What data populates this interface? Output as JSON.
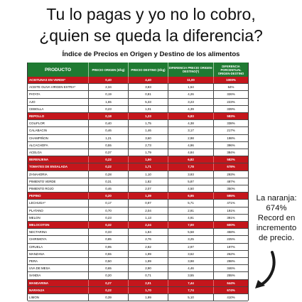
{
  "title_line1": "Tu lo pagas y yo no lo cobro,",
  "title_line2": "¿quien se queda la diferencia?",
  "subtitle": "Índice de Precios en Origen y Destino de los alimentos",
  "headers": [
    "PRODUCTO",
    "PRECIO ORIGEN (€/kg)",
    "PRECIO DESTINO (€/kg)",
    "DIFERENCIA PRECIO ORIGEN-DESTINO(*)",
    "DIFERENCIA PORCENTUAL ORIGEN-DESTINO"
  ],
  "rows": [
    {
      "name": "ACEITUNAS EN VERDE*",
      "origen": "0,40",
      "destino": "4,40",
      "diferencia": "11,00",
      "pct": "1000%",
      "style": "red"
    },
    {
      "name": "ACEITE OLIVA VIRGEN EXTRA*",
      "origen": "2,34",
      "destino": "3,83",
      "diferencia": "1,64",
      "pct": "64%",
      "style": "plain"
    },
    {
      "name": "PATATA",
      "origen": "0,19",
      "destino": "0,81",
      "diferencia": "4,26",
      "pct": "326%",
      "style": "plain"
    },
    {
      "name": "AJO",
      "origen": "1,65",
      "destino": "5,33",
      "diferencia": "3,23",
      "pct": "223%",
      "style": "plain"
    },
    {
      "name": "CEBOLLA",
      "origen": "0,23",
      "destino": "1,01",
      "diferencia": "4,39",
      "pct": "339%",
      "style": "plain"
    },
    {
      "name": "REPOLLO",
      "origen": "0,18",
      "destino": "1,23",
      "diferencia": "6,83",
      "pct": "583%",
      "style": "red"
    },
    {
      "name": "COLIFLOR",
      "origen": "0,40",
      "destino": "1,75",
      "diferencia": "4,38",
      "pct": "338%",
      "style": "plain"
    },
    {
      "name": "CALABACIN",
      "origen": "0,46",
      "destino": "1,46",
      "diferencia": "3,17",
      "pct": "217%",
      "style": "plain"
    },
    {
      "name": "CHAMPIÑON",
      "origen": "1,21",
      "destino": "3,60",
      "diferencia": "2,98",
      "pct": "198%",
      "style": "plain"
    },
    {
      "name": "ALCACHOFA",
      "origen": "0,55",
      "destino": "2,73",
      "diferencia": "4,96",
      "pct": "396%",
      "style": "plain"
    },
    {
      "name": "ACELGA",
      "origen": "0,37",
      "destino": "1,79",
      "diferencia": "4,84",
      "pct": "384%",
      "style": "plain"
    },
    {
      "name": "BERENJENA",
      "origen": "0,22",
      "destino": "1,50",
      "diferencia": "6,82",
      "pct": "582%",
      "style": "red"
    },
    {
      "name": "TOMATES DE ENSALADA",
      "origen": "0,22",
      "destino": "1,71",
      "diferencia": "7,78",
      "pct": "678%",
      "style": "red"
    },
    {
      "name": "ZANAHORIA",
      "origen": "0,28",
      "destino": "1,10",
      "diferencia": "3,93",
      "pct": "293%",
      "style": "plain"
    },
    {
      "name": "PIMIENTO VERDE",
      "origen": "0,31",
      "destino": "1,82",
      "diferencia": "5,87",
      "pct": "487%",
      "style": "plain"
    },
    {
      "name": "PIMIENTO ROJO",
      "origen": "0,46",
      "destino": "2,07",
      "diferencia": "4,50",
      "pct": "350%",
      "style": "plain"
    },
    {
      "name": "PEPINO",
      "origen": "0,20",
      "destino": "1,39",
      "diferencia": "6,95",
      "pct": "595%",
      "style": "red"
    },
    {
      "name": "LECHUGA*",
      "origen": "0,17",
      "destino": "0,97",
      "diferencia": "5,71",
      "pct": "471%",
      "style": "plain"
    },
    {
      "name": "PLATANO",
      "origen": "0,70",
      "destino": "2,04",
      "diferencia": "2,91",
      "pct": "191%",
      "style": "plain"
    },
    {
      "name": "MELON",
      "origen": "0,23",
      "destino": "1,13",
      "diferencia": "4,91",
      "pct": "391%",
      "style": "plain"
    },
    {
      "name": "MELOCOTON",
      "origen": "0,32",
      "destino": "2,24",
      "diferencia": "7,00",
      "pct": "600%",
      "style": "red"
    },
    {
      "name": "NECTARINA",
      "origen": "0,33",
      "destino": "1,84",
      "diferencia": "5,58",
      "pct": "458%",
      "style": "plain"
    },
    {
      "name": "CHIRIMOYA",
      "origen": "0,85",
      "destino": "2,76",
      "diferencia": "3,25",
      "pct": "225%",
      "style": "plain"
    },
    {
      "name": "CIRUELA",
      "origen": "0,95",
      "destino": "2,82",
      "diferencia": "2,97",
      "pct": "197%",
      "style": "plain"
    },
    {
      "name": "MANZANA",
      "origen": "0,55",
      "destino": "1,99",
      "diferencia": "3,62",
      "pct": "262%",
      "style": "plain"
    },
    {
      "name": "PERA",
      "origen": "0,50",
      "destino": "1,99",
      "diferencia": "3,98",
      "pct": "298%",
      "style": "plain"
    },
    {
      "name": "UVA DE MESA",
      "origen": "0,65",
      "destino": "2,90",
      "diferencia": "4,46",
      "pct": "346%",
      "style": "plain"
    },
    {
      "name": "SANDIA",
      "origen": "0,20",
      "destino": "0,71",
      "diferencia": "3,55",
      "pct": "255%",
      "style": "plain"
    },
    {
      "name": "MANDARINA",
      "origen": "0,27",
      "destino": "2,01",
      "diferencia": "7,44",
      "pct": "644%",
      "style": "red"
    },
    {
      "name": "NARANJA",
      "origen": "0,22",
      "destino": "1,70",
      "diferencia": "7,74",
      "pct": "674%",
      "style": "red"
    },
    {
      "name": "LIMON",
      "origen": "0,39",
      "destino": "1,99",
      "diferencia": "5,10",
      "pct": "410%",
      "style": "plain"
    }
  ],
  "annotation_line1": "La naranja:",
  "annotation_line2": "674%",
  "annotation_line3": "Record en",
  "annotation_line4": "incremento",
  "annotation_line5": "de precio.",
  "colors": {
    "header": "#1f7a32",
    "highlight": "#c4161c",
    "arrow": "#1a1a1a"
  }
}
